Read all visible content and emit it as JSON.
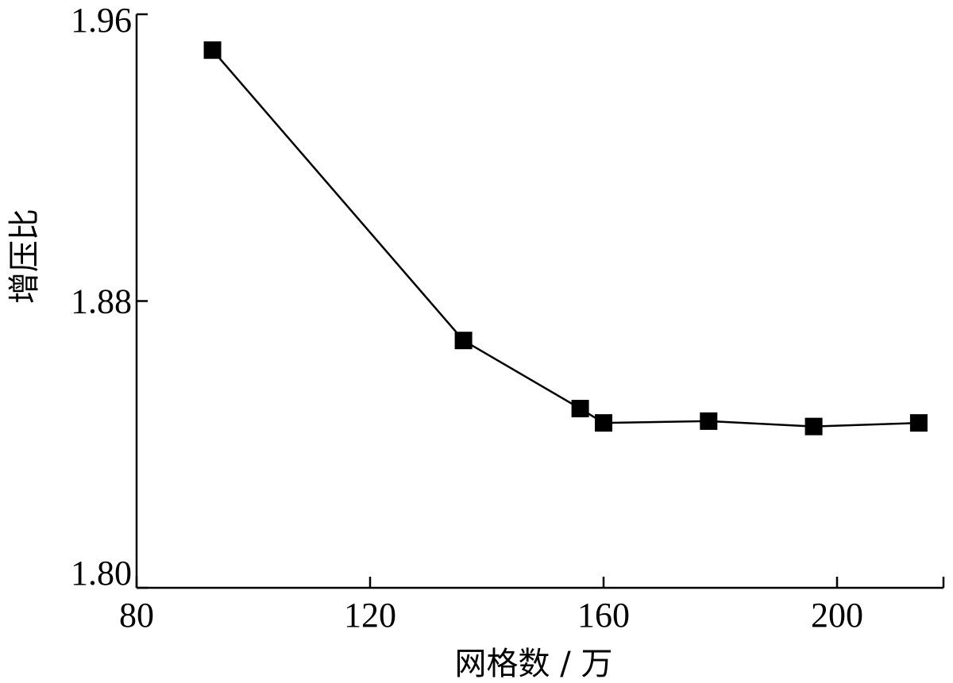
{
  "chart_data": {
    "type": "line",
    "xlabel": "网格数 / 万",
    "ylabel": "增压比",
    "xlim": [
      80,
      220
    ],
    "ylim": [
      1.8,
      1.96
    ],
    "xticks": [
      80,
      120,
      160,
      200
    ],
    "xtick_labels": [
      "80",
      "120",
      "160",
      "200"
    ],
    "yticks": [
      1.8,
      1.88,
      1.96
    ],
    "ytick_labels": [
      "1.80",
      "1.88",
      "1.96"
    ],
    "grid": false,
    "series": [
      {
        "marker": "square",
        "color": "#000000",
        "x": [
          93,
          136,
          156,
          160,
          178,
          196,
          214
        ],
        "y": [
          1.95,
          1.869,
          1.85,
          1.846,
          1.8465,
          1.845,
          1.846
        ]
      }
    ]
  }
}
